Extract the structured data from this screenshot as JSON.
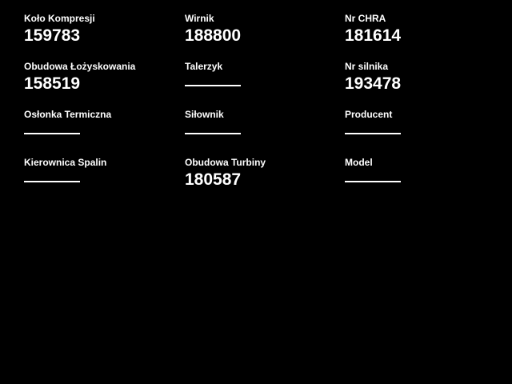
{
  "page": {
    "background_color": "#000000",
    "text_color": "#ffffff",
    "empty_value_indicator": "dash"
  },
  "fields": [
    {
      "label": "Koło Kompresji",
      "value": "159783"
    },
    {
      "label": "Wirnik",
      "value": "188800"
    },
    {
      "label": "Nr CHRA",
      "value": "181614"
    },
    {
      "label": "Obudowa Łożyskowania",
      "value": "158519"
    },
    {
      "label": "Talerzyk",
      "value": ""
    },
    {
      "label": "Nr silnika",
      "value": "193478"
    },
    {
      "label": "Osłonka Termiczna",
      "value": ""
    },
    {
      "label": "Siłownik",
      "value": ""
    },
    {
      "label": "Producent",
      "value": ""
    },
    {
      "label": "Kierownica Spalin",
      "value": ""
    },
    {
      "label": "Obudowa Turbiny",
      "value": "180587"
    },
    {
      "label": "Model",
      "value": ""
    }
  ]
}
